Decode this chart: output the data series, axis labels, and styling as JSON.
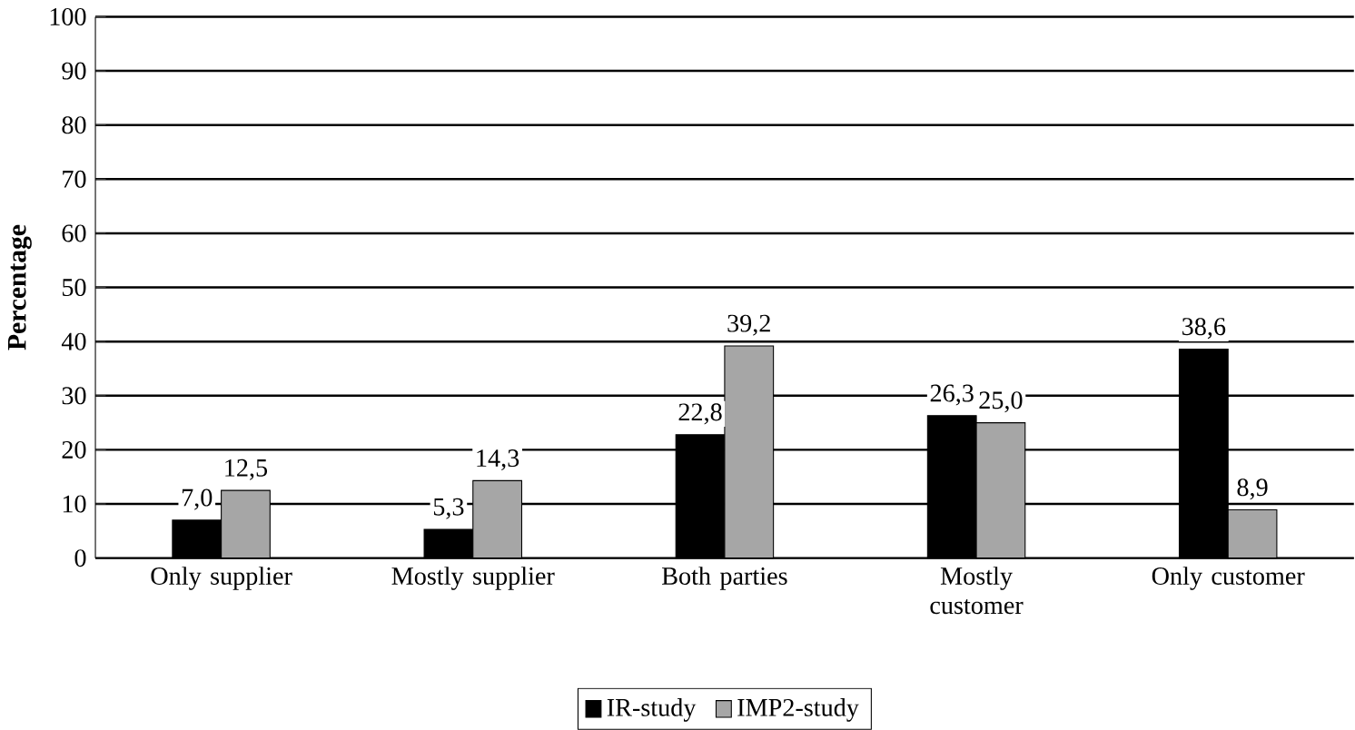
{
  "chart_data": {
    "type": "bar",
    "ylabel": "Percentage",
    "categories": [
      "Only supplier",
      "Mostly supplier",
      "Both parties",
      "Mostly customer",
      "Only customer"
    ],
    "series": [
      {
        "name": "IR-study",
        "color": "#000000",
        "values": [
          7.0,
          5.3,
          22.8,
          26.3,
          38.6
        ],
        "value_labels": [
          "7,0",
          "5,3",
          "22,8",
          "26,3",
          "38,6"
        ]
      },
      {
        "name": "IMP2-study",
        "color": "#a6a6a6",
        "values": [
          12.5,
          14.3,
          39.2,
          25.0,
          8.9
        ],
        "value_labels": [
          "12,5",
          "14,3",
          "39,2",
          "25,0",
          "8,9"
        ]
      }
    ],
    "ylim": [
      0,
      100
    ],
    "yticks": [
      0,
      10,
      20,
      30,
      40,
      50,
      60,
      70,
      80,
      90,
      100
    ],
    "grid": "y",
    "legend": "bottom"
  }
}
